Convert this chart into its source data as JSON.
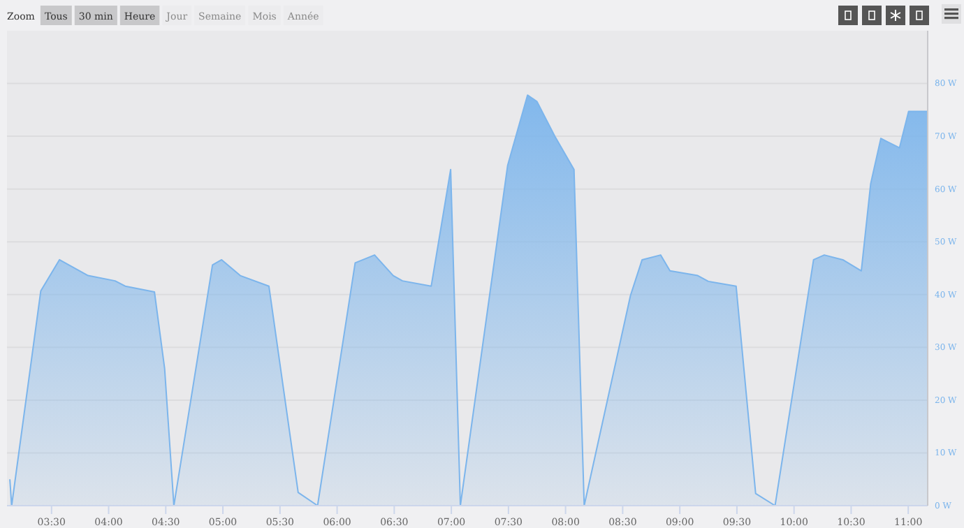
{
  "chart_data": {
    "type": "area",
    "annotations": [
      "Zoom",
      "Tous",
      "30 min",
      "Heure",
      "Jour",
      "Semaine",
      "Mois",
      "Année"
    ],
    "x": [
      3.135,
      3.151,
      3.406,
      3.569,
      3.82,
      4.056,
      4.145,
      4.401,
      4.49,
      4.571,
      4.909,
      4.989,
      5.152,
      5.403,
      5.659,
      5.829,
      6.158,
      6.328,
      6.491,
      6.572,
      6.824,
      6.994,
      7.079,
      7.493,
      7.667,
      7.749,
      7.911,
      8.074,
      8.163,
      8.568,
      8.67,
      8.832,
      8.914,
      9.157,
      9.25,
      9.493,
      9.664,
      9.834,
      10.171,
      10.265,
      10.427,
      10.589,
      10.671,
      10.76,
      10.923,
      11.003,
      11.17
    ],
    "series": [
      {
        "color": "#7cb5ec",
        "values": [
          5,
          0,
          40.7,
          46.6,
          43.6,
          42.6,
          41.6,
          40.5,
          26,
          0,
          45.6,
          46.6,
          43.6,
          41.6,
          2.5,
          0,
          46,
          47.5,
          43.6,
          42.6,
          41.6,
          63.7,
          0,
          64.5,
          77.8,
          76.6,
          69.8,
          63.7,
          0,
          39.8,
          46.6,
          47.5,
          44.5,
          43.6,
          42.5,
          41.6,
          2.3,
          0,
          46.6,
          47.5,
          46.6,
          44.5,
          61,
          69.6,
          67.8,
          74.7,
          74.7
        ]
      }
    ],
    "xlim": [
      3.11,
      11.17
    ],
    "xticks": [
      {
        "value": 3.5,
        "label": "03:30"
      },
      {
        "value": 4,
        "label": "04:00"
      },
      {
        "value": 4.5,
        "label": "04:30"
      },
      {
        "value": 5,
        "label": "05:00"
      },
      {
        "value": 5.5,
        "label": "05:30"
      },
      {
        "value": 6,
        "label": "06:00"
      },
      {
        "value": 6.5,
        "label": "06:30"
      },
      {
        "value": 7,
        "label": "07:00"
      },
      {
        "value": 7.5,
        "label": "07:30"
      },
      {
        "value": 8,
        "label": "08:00"
      },
      {
        "value": 8.5,
        "label": "08:30"
      },
      {
        "value": 9,
        "label": "09:00"
      },
      {
        "value": 9.5,
        "label": "09:30"
      },
      {
        "value": 10,
        "label": "10:00"
      },
      {
        "value": 10.5,
        "label": "10:30"
      },
      {
        "value": 11,
        "label": "11:00"
      }
    ],
    "ylim": [
      0,
      90
    ],
    "yticks": [
      {
        "value": 0,
        "label": "0 W"
      },
      {
        "value": 10,
        "label": "10 W"
      },
      {
        "value": 20,
        "label": "20 W"
      },
      {
        "value": 30,
        "label": "30 W"
      },
      {
        "value": 40,
        "label": "40 W"
      },
      {
        "value": 50,
        "label": "50 W"
      },
      {
        "value": 60,
        "label": "60 W"
      },
      {
        "value": 70,
        "label": "70 W"
      },
      {
        "value": 80,
        "label": "80 W"
      }
    ],
    "grid": "y",
    "marker": "none",
    "line_style": "solid"
  }
}
